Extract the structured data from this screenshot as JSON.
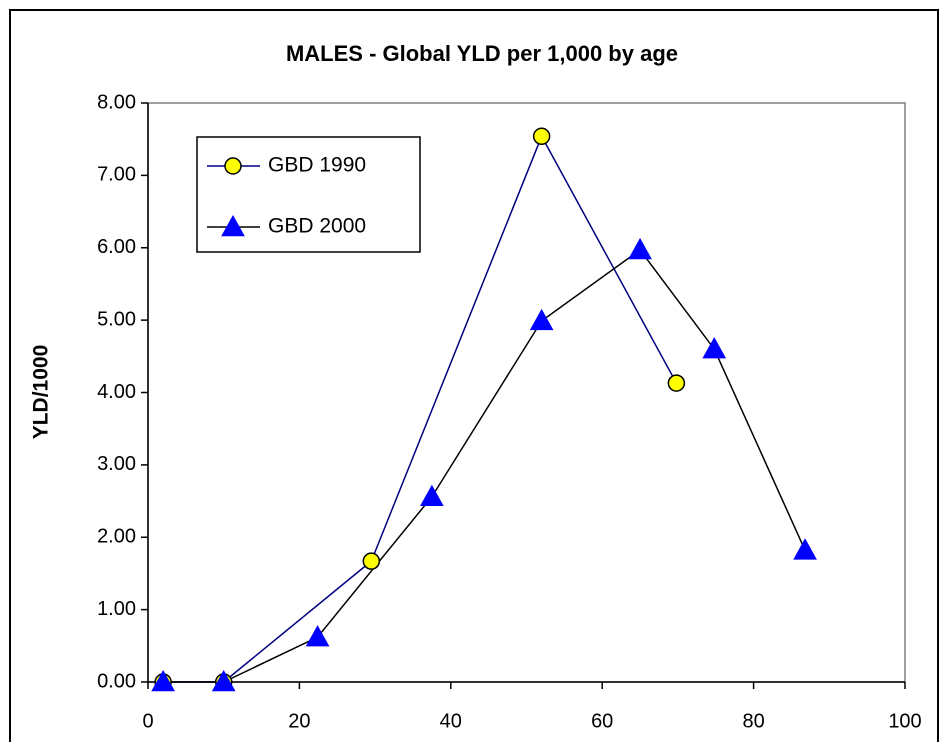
{
  "chart_data": {
    "type": "line",
    "title": "MALES - Global YLD per 1,000 by age",
    "y_label": "YLD/1000",
    "series": [
      {
        "name": "GBD 1990",
        "line_color": "#000080",
        "marker_color": "#ffff00",
        "marker": "circle",
        "x": [
          2,
          10,
          29.5,
          52,
          69.8
        ],
        "values": [
          0,
          0,
          1.67,
          7.54,
          4.13
        ]
      },
      {
        "name": "GBD 2000",
        "line_color": "#000000",
        "marker_color": "#0000ff",
        "marker": "triangle",
        "x": [
          2,
          10,
          22.4,
          37.5,
          52,
          65,
          74.8,
          86.8
        ],
        "values": [
          0,
          0,
          0.62,
          2.56,
          4.99,
          5.97,
          4.6,
          1.82
        ]
      }
    ],
    "xlim": [
      0,
      100
    ],
    "xticks": [
      0,
      20,
      40,
      60,
      80,
      100
    ],
    "ylim": [
      0,
      8
    ],
    "yticks": [
      {
        "value": 0,
        "label": "0.00"
      },
      {
        "value": 1,
        "label": "1.00"
      },
      {
        "value": 2,
        "label": "2.00"
      },
      {
        "value": 3,
        "label": "3.00"
      },
      {
        "value": 4,
        "label": "4.00"
      },
      {
        "value": 5,
        "label": "5.00"
      },
      {
        "value": 6,
        "label": "6.00"
      },
      {
        "value": 7,
        "label": "7.00"
      },
      {
        "value": 8,
        "label": "8.00"
      }
    ],
    "grid": false
  }
}
